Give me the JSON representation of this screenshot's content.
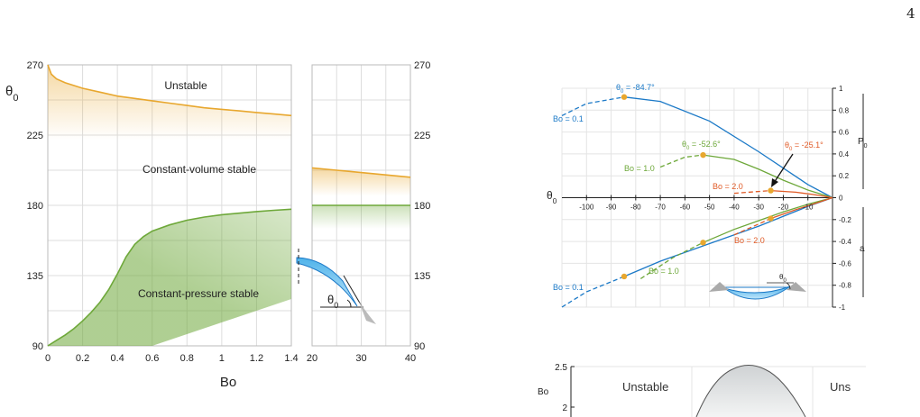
{
  "page_number": "4",
  "colors": {
    "orange": "#e8a72e",
    "green": "#6ea83a",
    "blue": "#1b79c7",
    "red": "#e05a26",
    "marker": "#e8a72e",
    "grid": "#dddddd",
    "axis": "#555555"
  },
  "chart_data": [
    {
      "type": "area",
      "ylabel": "θ0",
      "xlabel": "Bo",
      "xlim": [
        0,
        1.4
      ],
      "ylim": [
        90,
        270
      ],
      "xticks": [
        "0",
        "0.2",
        "0.4",
        "0.6",
        "0.8",
        "1",
        "1.2",
        "1.4"
      ],
      "yticks": [
        "90",
        "135",
        "180",
        "225",
        "270"
      ],
      "grid": true,
      "region_labels": [
        "Unstable",
        "Constant-volume stable",
        "Constant-pressure stable"
      ],
      "inset_label": "θ0",
      "series": [
        {
          "color": "orange",
          "x": [
            0,
            0.02,
            0.05,
            0.1,
            0.2,
            0.3,
            0.4,
            0.5,
            0.6,
            0.7,
            0.8,
            0.9,
            1.0,
            1.1,
            1.2,
            1.3,
            1.4
          ],
          "y": [
            270,
            264,
            261,
            258.5,
            255,
            252.5,
            250,
            248.5,
            247,
            245.5,
            244,
            242.5,
            241.5,
            240.5,
            239.5,
            238.5,
            237.5
          ]
        },
        {
          "color": "green",
          "x": [
            0,
            0.05,
            0.1,
            0.15,
            0.2,
            0.25,
            0.3,
            0.35,
            0.4,
            0.45,
            0.5,
            0.55,
            0.6,
            0.7,
            0.8,
            0.9,
            1.0,
            1.1,
            1.2,
            1.3,
            1.4
          ],
          "y": [
            90,
            93.5,
            97,
            101,
            106,
            111.5,
            118,
            126,
            136,
            147,
            155,
            160,
            163.5,
            167.5,
            170.5,
            172.5,
            174,
            175,
            176,
            176.8,
            177.5
          ]
        }
      ]
    },
    {
      "type": "line",
      "xlim": [
        20,
        40
      ],
      "ylim": [
        90,
        270
      ],
      "xticks": [
        "20",
        "30",
        "40"
      ],
      "yticks": [
        "90",
        "135",
        "180",
        "225",
        "270"
      ],
      "grid": true,
      "series": [
        {
          "color": "orange",
          "x": [
            20,
            25,
            30,
            35,
            40
          ],
          "y": [
            204,
            202.5,
            201,
            199.5,
            198
          ]
        },
        {
          "color": "green",
          "x": [
            20,
            40
          ],
          "y": [
            180,
            180
          ]
        }
      ]
    },
    {
      "type": "line",
      "xlabel": "θ0",
      "xlim": [
        -110,
        0
      ],
      "ylim": [
        -1,
        1
      ],
      "xticks": [
        "-100",
        "-90",
        "-80",
        "-70",
        "-60",
        "-50",
        "-40",
        "-30",
        "-20",
        "-10"
      ],
      "yticks": [
        "1",
        "0.8",
        "0.6",
        "0.4",
        "0.2",
        "0",
        "-0.2",
        "-0.4",
        "-0.6",
        "-0.8",
        "-1"
      ],
      "right_labels": [
        "P0",
        "a"
      ],
      "inset_label": "θ0",
      "grid": true,
      "series": [
        {
          "name": "Bo = 0.1",
          "color": "blue",
          "max_label": "θ0 = -84.7°",
          "upper": {
            "x": [
              -110,
              -100,
              -84.7,
              -70,
              -50,
              -30,
              -10,
              0
            ],
            "y": [
              0.75,
              0.86,
              0.92,
              0.88,
              0.7,
              0.42,
              0.12,
              0
            ]
          },
          "lower": {
            "x": [
              -110,
              -100,
              -84.7,
              -70,
              -50,
              -30,
              -10,
              0
            ],
            "y": [
              -1.0,
              -0.86,
              -0.72,
              -0.58,
              -0.42,
              -0.26,
              -0.08,
              0
            ]
          },
          "markers": [
            [
              -84.7,
              0.92
            ],
            [
              -84.7,
              -0.72
            ]
          ],
          "dashed_until": -84.7
        },
        {
          "name": "Bo = 1.0",
          "color": "green",
          "max_label": "θ0 = -52.6°",
          "upper": {
            "x": [
              -70,
              -60,
              -52.6,
              -40,
              -30,
              -20,
              -10,
              0
            ],
            "y": [
              0.28,
              0.37,
              0.39,
              0.35,
              0.26,
              0.16,
              0.07,
              0
            ]
          },
          "lower": {
            "x": [
              -78,
              -65,
              -52.6,
              -40,
              -30,
              -20,
              -10,
              0
            ],
            "y": [
              -0.74,
              -0.55,
              -0.41,
              -0.29,
              -0.21,
              -0.13,
              -0.06,
              0
            ]
          },
          "markers": [
            [
              -52.6,
              0.39
            ],
            [
              -52.6,
              -0.41
            ]
          ],
          "dashed_until": -52.6
        },
        {
          "name": "Bo = 2.0",
          "color": "red",
          "max_label": "θ0 = -25.1°",
          "upper": {
            "x": [
              -40,
              -25.1,
              -15,
              -8,
              0
            ],
            "y": [
              0.04,
              0.065,
              0.05,
              0.03,
              0
            ]
          },
          "lower": {
            "x": [
              -40,
              -30,
              -25.1,
              -15,
              -8,
              0
            ],
            "y": [
              -0.34,
              -0.24,
              -0.19,
              -0.11,
              -0.06,
              0
            ]
          },
          "markers": [
            [
              -25.1,
              0.065
            ],
            [
              -25.1,
              -0.19
            ]
          ],
          "dashed_until": -25.1
        }
      ]
    },
    {
      "type": "area",
      "ylabel": "Bo",
      "ylim": [
        1.8,
        2.5
      ],
      "yticks": [
        "2.5",
        "2"
      ],
      "region_labels": [
        "Unstable",
        "Uns"
      ],
      "grid": true
    }
  ]
}
